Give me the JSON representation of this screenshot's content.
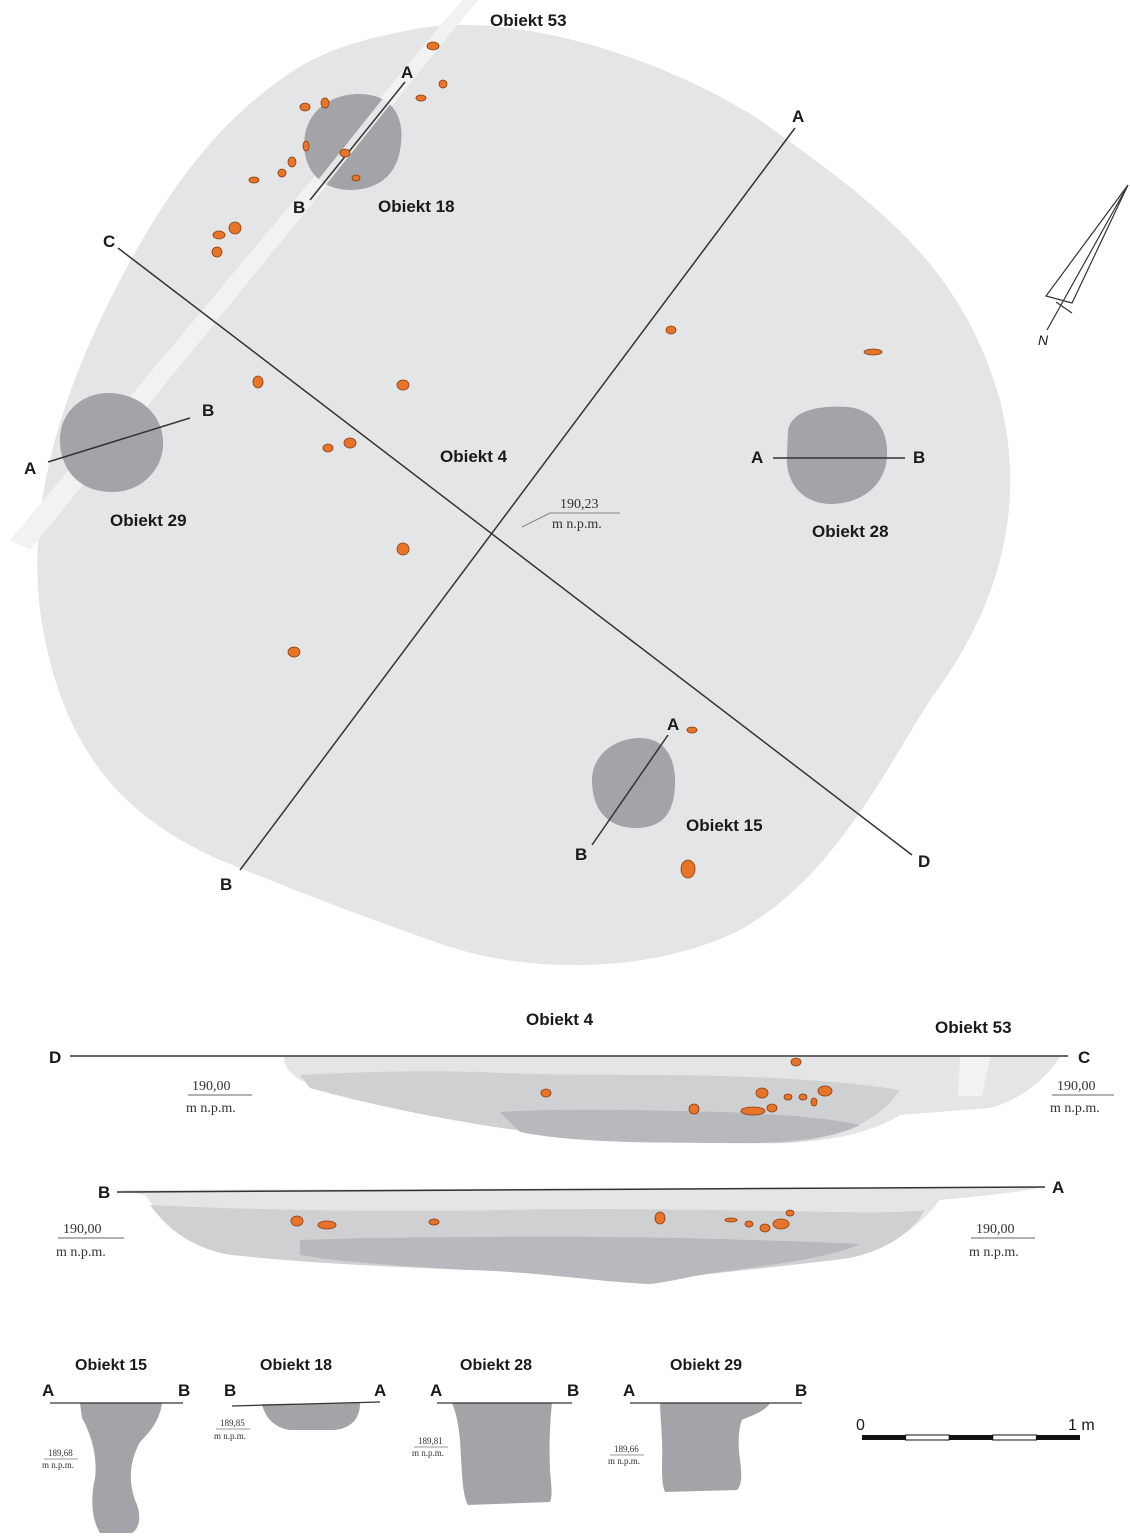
{
  "plan": {
    "objects": {
      "o53": "Obiekt 53",
      "o18": "Obiekt 18",
      "o4": "Obiekt 4",
      "o29": "Obiekt 29",
      "o28": "Obiekt 28",
      "o15": "Obiekt 15"
    },
    "letters": {
      "a": "A",
      "b": "B",
      "c": "C",
      "d": "D"
    },
    "elevation": {
      "value": "190,23",
      "unit": "m n.p.m."
    }
  },
  "north_label": "N",
  "section_dc": {
    "title": "Obiekt 4",
    "secondary": "Obiekt 53",
    "left": "D",
    "right": "C",
    "elev_value": "190,00",
    "elev_unit": "m n.p.m."
  },
  "section_ba": {
    "left": "B",
    "right": "A",
    "elev_value": "190,00",
    "elev_unit": "m n.p.m."
  },
  "small_sections": [
    {
      "title": "Obiekt 15",
      "left": "A",
      "right": "B",
      "elev": "189,68",
      "unit": "m n.p.m."
    },
    {
      "title": "Obiekt 18",
      "left": "B",
      "right": "A",
      "elev": "189,85",
      "unit": "m n.p.m."
    },
    {
      "title": "Obiekt 28",
      "left": "A",
      "right": "B",
      "elev": "189,81",
      "unit": "m n.p.m."
    },
    {
      "title": "Obiekt 29",
      "left": "A",
      "right": "B",
      "elev": "189,66",
      "unit": "m n.p.m."
    }
  ],
  "scale": {
    "start": "0",
    "end": "1 m"
  },
  "colors": {
    "fill_light": "#e4e5e6",
    "fill_mid": "#cfd0d2",
    "fill_dark": "#a3a4a7",
    "stone": "#e8742a",
    "line": "#333333"
  }
}
